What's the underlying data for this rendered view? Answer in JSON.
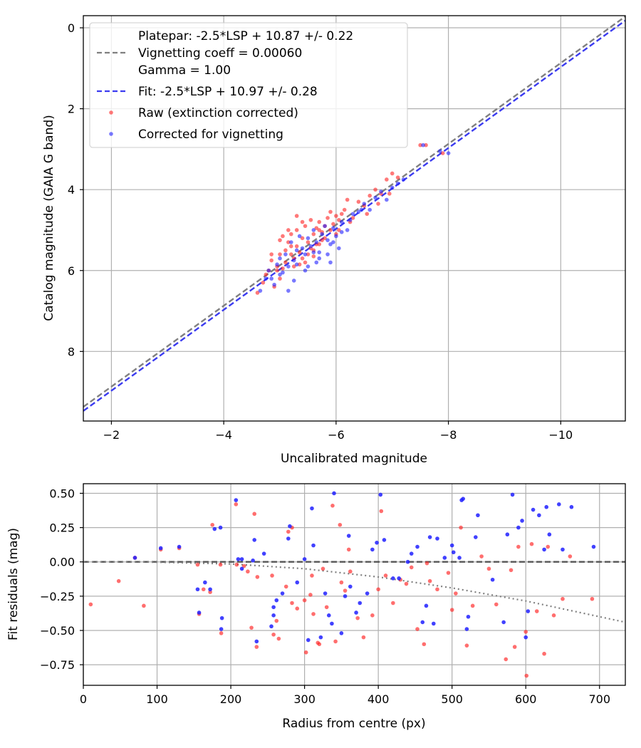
{
  "chart_data": [
    {
      "type": "scatter",
      "title": "",
      "xlabel": "Uncalibrated magnitude",
      "ylabel": "Catalog magnitude (GAIA G band)",
      "xlim": [
        -1.5,
        -11.15
      ],
      "ylim": [
        -0.3,
        9.72
      ],
      "x_inverted": true,
      "y_inverted": true,
      "xticks": [
        -2,
        -4,
        -6,
        -8,
        -10
      ],
      "xtick_labels": [
        "−2",
        "−4",
        "−6",
        "−8",
        "−10"
      ],
      "yticks": [
        0,
        2,
        4,
        6,
        8
      ],
      "ytick_labels": [
        "0",
        "2",
        "4",
        "6",
        "8"
      ],
      "grid": true,
      "legend_position": "top-left",
      "legend": {
        "platepar_line1": "Platepar: -2.5*LSP + 10.87 +/- 0.22",
        "platepar_line2": "Vignetting coeff = 0.00060",
        "platepar_line3": "Gamma = 1.00",
        "fit": "Fit: -2.5*LSP + 10.97 +/- 0.28",
        "raw": "Raw (extinction corrected)",
        "corrected": "Corrected for vignetting"
      },
      "lines": [
        {
          "name": "Platepar",
          "slope": -2.5,
          "intercept": 10.87,
          "color": "#808080",
          "style": "dashed"
        },
        {
          "name": "Fit",
          "slope": -2.5,
          "intercept": 10.97,
          "color": "#3b3bf0",
          "style": "dashed"
        }
      ],
      "series": [
        {
          "name": "Raw (extinction corrected)",
          "color": "#ff2020",
          "x": [
            -4.6,
            -4.7,
            -4.75,
            -4.8,
            -4.85,
            -4.9,
            -4.95,
            -5.0,
            -5.0,
            -5.05,
            -5.1,
            -5.1,
            -5.15,
            -5.2,
            -5.2,
            -5.25,
            -5.3,
            -5.3,
            -5.35,
            -5.4,
            -5.4,
            -5.45,
            -5.5,
            -5.5,
            -5.55,
            -5.6,
            -5.6,
            -5.65,
            -5.7,
            -5.7,
            -5.75,
            -5.8,
            -5.8,
            -5.85,
            -5.9,
            -5.95,
            -6.0,
            -6.0,
            -6.05,
            -6.1,
            -6.15,
            -6.2,
            -6.3,
            -6.4,
            -6.5,
            -6.55,
            -6.6,
            -6.7,
            -6.75,
            -6.8,
            -6.9,
            -6.95,
            -7.0,
            -7.1,
            -5.2,
            -5.6,
            -5.4,
            -5.0,
            -5.7,
            -5.9,
            -6.25,
            -4.85,
            -5.15,
            -5.45,
            -5.55,
            -5.75,
            -5.3,
            -5.05,
            -6.05,
            -7.5,
            -7.6,
            -7.9,
            -5.35,
            -5.65,
            -4.95,
            -5.25
          ],
          "y": [
            6.55,
            6.3,
            6.1,
            6.0,
            5.75,
            6.4,
            5.9,
            5.6,
            6.2,
            5.95,
            5.5,
            5.8,
            5.3,
            5.6,
            5.1,
            5.9,
            5.4,
            5.0,
            5.55,
            5.2,
            5.7,
            4.9,
            5.6,
            5.3,
            4.75,
            5.5,
            5.1,
            4.95,
            5.35,
            4.8,
            5.05,
            4.9,
            5.2,
            4.7,
            5.0,
            4.85,
            4.65,
            5.1,
            4.75,
            4.6,
            4.5,
            4.25,
            4.7,
            4.3,
            4.4,
            4.6,
            4.15,
            4.0,
            4.35,
            4.1,
            3.75,
            4.1,
            3.6,
            3.7,
            5.4,
            5.65,
            4.8,
            5.25,
            5.0,
            4.55,
            4.8,
            5.6,
            5.0,
            5.8,
            5.45,
            5.25,
            4.65,
            5.15,
            5.0,
            2.9,
            2.9,
            3.1,
            5.85,
            5.35,
            6.0,
            5.7
          ]
        },
        {
          "name": "Corrected for vignetting",
          "color": "#2020ff",
          "x": [
            -4.65,
            -4.75,
            -4.8,
            -4.9,
            -4.95,
            -5.0,
            -5.05,
            -5.1,
            -5.15,
            -5.2,
            -5.25,
            -5.3,
            -5.35,
            -5.4,
            -5.45,
            -5.5,
            -5.55,
            -5.6,
            -5.65,
            -5.7,
            -5.75,
            -5.8,
            -5.85,
            -5.9,
            -5.95,
            -6.0,
            -6.05,
            -6.1,
            -6.2,
            -6.3,
            -6.4,
            -6.5,
            -6.6,
            -6.7,
            -6.8,
            -6.9,
            -7.0,
            -7.1,
            -7.2,
            -5.0,
            -5.3,
            -5.5,
            -5.7,
            -5.9,
            -6.1,
            -5.15,
            -5.45,
            -5.65,
            -5.85,
            -4.85,
            -6.25,
            -6.45,
            -7.55,
            -7.85,
            -8.0,
            -5.25,
            -5.6,
            -5.95
          ],
          "y": [
            6.5,
            6.2,
            6.0,
            6.35,
            5.85,
            5.7,
            6.05,
            5.6,
            5.9,
            5.3,
            5.75,
            5.5,
            5.15,
            5.45,
            5.6,
            5.2,
            5.4,
            5.0,
            5.3,
            5.7,
            5.1,
            4.9,
            5.25,
            5.35,
            4.95,
            5.15,
            5.45,
            4.8,
            5.0,
            4.6,
            4.55,
            4.35,
            4.5,
            4.2,
            4.05,
            4.25,
            3.95,
            3.85,
            3.75,
            6.1,
            5.85,
            5.9,
            5.55,
            5.8,
            5.05,
            6.5,
            6.0,
            5.8,
            5.6,
            6.2,
            4.75,
            4.5,
            2.9,
            3.05,
            3.1,
            6.25,
            5.55,
            5.3
          ]
        }
      ]
    },
    {
      "type": "scatter",
      "title": "",
      "xlabel": "Radius from centre (px)",
      "ylabel": "Fit residuals (mag)",
      "xlim": [
        0,
        735
      ],
      "ylim": [
        -0.9,
        0.57
      ],
      "xticks": [
        0,
        100,
        200,
        300,
        400,
        500,
        600,
        700
      ],
      "xtick_labels": [
        "0",
        "100",
        "200",
        "300",
        "400",
        "500",
        "600",
        "700"
      ],
      "yticks": [
        0.5,
        0.25,
        0.0,
        -0.25,
        -0.5,
        -0.75
      ],
      "ytick_labels": [
        "0.50",
        "0.25",
        "0.00",
        "−0.25",
        "−0.50",
        "−0.75"
      ],
      "grid": true,
      "lines": [
        {
          "name": "zero",
          "color": "#555555",
          "style": "dashed",
          "x": [
            0,
            735
          ],
          "y": [
            0,
            0
          ]
        },
        {
          "name": "vignetting model",
          "color": "#808080",
          "style": "dotted",
          "x": [
            0,
            100,
            200,
            300,
            400,
            500,
            600,
            735
          ],
          "y": [
            0,
            -0.002,
            -0.015,
            -0.05,
            -0.11,
            -0.19,
            -0.285,
            -0.44
          ]
        }
      ],
      "series": [
        {
          "name": "Raw",
          "color": "#ff2020",
          "x": [
            10,
            48,
            70,
            82,
            105,
            130,
            155,
            157,
            172,
            175,
            186,
            187,
            207,
            208,
            218,
            223,
            232,
            235,
            236,
            256,
            258,
            262,
            275,
            278,
            283,
            290,
            300,
            302,
            308,
            310,
            312,
            320,
            325,
            330,
            338,
            342,
            348,
            355,
            360,
            362,
            372,
            380,
            392,
            400,
            404,
            410,
            420,
            430,
            438,
            445,
            453,
            462,
            466,
            470,
            480,
            495,
            500,
            505,
            512,
            520,
            528,
            540,
            550,
            560,
            573,
            580,
            585,
            590,
            600,
            601,
            608,
            615,
            625,
            630,
            638,
            650,
            660,
            690,
            163,
            283,
            350,
            265,
            318,
            228
          ],
          "y": [
            -0.31,
            -0.14,
            0.03,
            -0.32,
            0.09,
            0.1,
            -0.02,
            -0.38,
            -0.22,
            0.27,
            -0.02,
            -0.52,
            0.42,
            -0.02,
            -0.03,
            -0.07,
            0.35,
            -0.62,
            -0.11,
            -0.1,
            -0.53,
            -0.43,
            -0.18,
            0.22,
            -0.3,
            -0.34,
            -0.28,
            -0.66,
            -0.24,
            -0.1,
            -0.38,
            -0.6,
            -0.05,
            -0.33,
            0.41,
            -0.58,
            0.27,
            -0.21,
            0.09,
            -0.07,
            -0.41,
            -0.55,
            -0.39,
            -0.2,
            0.37,
            -0.1,
            -0.3,
            -0.13,
            -0.16,
            -0.04,
            -0.49,
            -0.6,
            -0.01,
            -0.14,
            -0.2,
            -0.08,
            -0.35,
            -0.23,
            0.25,
            -0.61,
            -0.32,
            0.04,
            -0.05,
            -0.31,
            -0.71,
            -0.06,
            -0.62,
            0.11,
            -0.51,
            -0.83,
            0.13,
            -0.36,
            -0.67,
            0.11,
            -0.39,
            -0.27,
            0.04,
            -0.27,
            -0.2,
            0.25,
            -0.15,
            -0.56,
            -0.59,
            -0.48
          ]
        },
        {
          "name": "Corrected",
          "color": "#2020ff",
          "x": [
            70,
            105,
            130,
            155,
            157,
            172,
            178,
            186,
            187,
            188,
            207,
            210,
            215,
            230,
            232,
            235,
            255,
            258,
            262,
            270,
            278,
            280,
            290,
            300,
            305,
            310,
            312,
            322,
            328,
            333,
            337,
            340,
            350,
            355,
            360,
            362,
            370,
            375,
            385,
            392,
            398,
            403,
            408,
            420,
            428,
            440,
            445,
            453,
            460,
            465,
            470,
            475,
            480,
            490,
            500,
            502,
            510,
            513,
            515,
            520,
            522,
            532,
            535,
            555,
            570,
            575,
            582,
            590,
            595,
            600,
            603,
            610,
            618,
            625,
            628,
            632,
            645,
            650,
            662,
            692,
            258,
            165,
            215,
            245
          ],
          "y": [
            0.03,
            0.1,
            0.11,
            -0.2,
            -0.37,
            -0.2,
            0.24,
            0.25,
            -0.49,
            -0.41,
            0.45,
            0.02,
            0.02,
            0.01,
            0.16,
            -0.58,
            -0.47,
            -0.39,
            -0.28,
            -0.23,
            0.17,
            0.26,
            -0.15,
            0.02,
            -0.57,
            0.39,
            0.12,
            -0.55,
            -0.23,
            -0.39,
            -0.45,
            0.5,
            -0.52,
            -0.25,
            0.19,
            -0.18,
            -0.37,
            -0.3,
            -0.23,
            0.09,
            0.14,
            0.49,
            0.16,
            -0.12,
            -0.12,
            -0.0,
            0.06,
            0.11,
            -0.44,
            -0.32,
            0.18,
            -0.45,
            0.17,
            0.03,
            0.12,
            0.07,
            0.03,
            0.45,
            0.46,
            -0.49,
            -0.4,
            0.18,
            0.34,
            -0.13,
            -0.44,
            0.2,
            0.49,
            0.25,
            0.3,
            -0.55,
            -0.36,
            0.38,
            0.34,
            0.09,
            0.4,
            0.2,
            0.42,
            0.09,
            0.4,
            0.11,
            -0.33,
            -0.15,
            -0.05,
            0.06
          ]
        }
      ]
    }
  ]
}
